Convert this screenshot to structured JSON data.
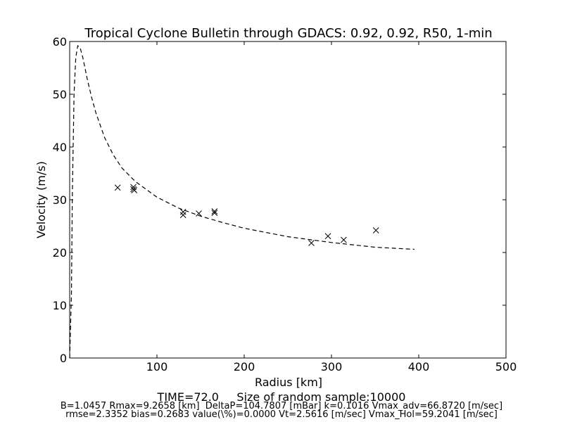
{
  "chart_data": {
    "type": "scatter",
    "title": "Tropical Cyclone Bulletin through GDACS: 0.92, 0.92, R50, 1-min",
    "xlabel": "Radius [km]",
    "ylabel": "Velocity (m/s)",
    "xlim": [
      0,
      500
    ],
    "ylim": [
      0,
      60
    ],
    "x_ticks": [
      100,
      200,
      300,
      400,
      500
    ],
    "y_ticks": [
      0,
      10,
      20,
      30,
      40,
      50,
      60
    ],
    "grid": false,
    "series": [
      {
        "marker": "x",
        "color": "#000000",
        "points": [
          [
            55,
            32.3
          ],
          [
            73,
            32.4
          ],
          [
            73,
            32.0
          ],
          [
            74,
            31.8
          ],
          [
            130,
            27.7
          ],
          [
            130,
            27.1
          ],
          [
            148,
            27.4
          ],
          [
            166,
            27.8
          ],
          [
            166,
            27.5
          ],
          [
            277,
            21.8
          ],
          [
            296,
            23.1
          ],
          [
            314,
            22.4
          ],
          [
            351,
            24.2
          ]
        ]
      },
      {
        "line_style": "dashed",
        "color": "#000000",
        "points": [
          [
            0,
            0
          ],
          [
            2,
            12
          ],
          [
            3,
            30
          ],
          [
            5,
            50
          ],
          [
            7,
            57
          ],
          [
            9.27,
            59.2
          ],
          [
            12,
            58.8
          ],
          [
            15,
            57
          ],
          [
            20,
            53
          ],
          [
            25,
            49.5
          ],
          [
            30,
            46.5
          ],
          [
            40,
            41.8
          ],
          [
            50,
            38.5
          ],
          [
            60,
            36.0
          ],
          [
            75,
            33.5
          ],
          [
            100,
            30.5
          ],
          [
            125,
            28.4
          ],
          [
            150,
            26.9
          ],
          [
            175,
            25.7
          ],
          [
            200,
            24.6
          ],
          [
            250,
            23.0
          ],
          [
            300,
            21.9
          ],
          [
            350,
            21.0
          ],
          [
            395,
            20.6
          ]
        ]
      }
    ]
  },
  "footer": {
    "time_line": "TIME=72.0     Size of random sample:10000",
    "param_line_1": "B=1.0457 Rmax=9.2658 [km]  DeltaP=104.7807 [mBar] k=0.1016 Vmax_adv=66.8720 [m/sec]",
    "param_line_2": "rmse=2.3352 bias=0.2683 value(\\%)=0.0000 Vt=2.5616 [m/sec] Vmax_Hol=59.2041 [m/sec]"
  }
}
